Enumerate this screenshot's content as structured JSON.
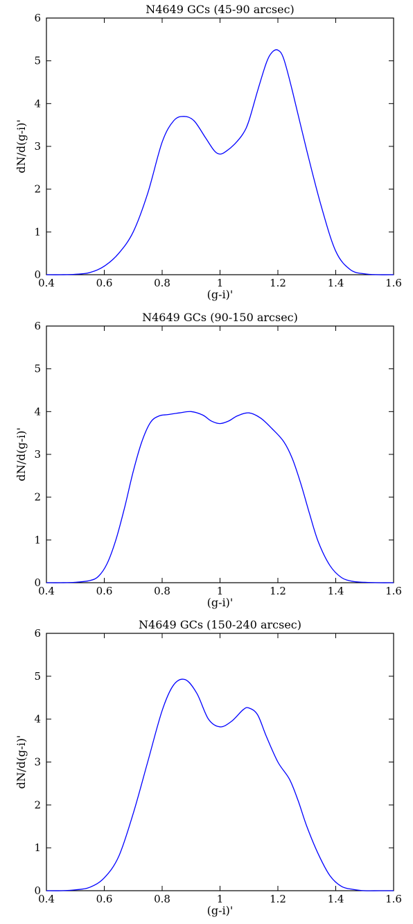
{
  "chart_data": [
    {
      "type": "line",
      "title": "N4649 GCs (45-90 arcsec)",
      "xlabel": "(g-i)'",
      "ylabel": "dN/d(g-i)'",
      "xlim": [
        0.4,
        1.6
      ],
      "ylim": [
        0,
        6
      ],
      "xticks": [
        0.4,
        0.6,
        0.8,
        1,
        1.2,
        1.4,
        1.6
      ],
      "xtick_labels": [
        "0.4",
        "0.6",
        "0.8",
        "1",
        "1.2",
        "1.4",
        "1.6"
      ],
      "yticks": [
        0,
        1,
        2,
        3,
        4,
        5,
        6
      ],
      "ytick_labels": [
        "0",
        "1",
        "2",
        "3",
        "4",
        "5",
        "6"
      ],
      "grid": false,
      "line_color": "#0000ff",
      "series": [
        {
          "x": [
            0.4,
            0.45,
            0.5,
            0.55,
            0.6,
            0.65,
            0.7,
            0.75,
            0.8,
            0.84,
            0.875,
            0.91,
            0.95,
            0.98,
            1.0,
            1.02,
            1.05,
            1.08,
            1.1,
            1.13,
            1.16,
            1.18,
            1.2,
            1.22,
            1.25,
            1.3,
            1.35,
            1.4,
            1.45,
            1.5,
            1.55,
            1.6
          ],
          "y": [
            0.0,
            0.0,
            0.01,
            0.05,
            0.2,
            0.5,
            1.0,
            1.9,
            3.1,
            3.6,
            3.7,
            3.6,
            3.2,
            2.9,
            2.82,
            2.88,
            3.05,
            3.3,
            3.6,
            4.3,
            4.95,
            5.2,
            5.25,
            5.05,
            4.3,
            2.9,
            1.6,
            0.55,
            0.12,
            0.02,
            0.0,
            0.0
          ]
        }
      ]
    },
    {
      "type": "line",
      "title": "N4649 GCs (90-150 arcsec)",
      "xlabel": "(g-i)'",
      "ylabel": "dN/d(g-i)'",
      "xlim": [
        0.4,
        1.6
      ],
      "ylim": [
        0,
        6
      ],
      "xticks": [
        0.4,
        0.6,
        0.8,
        1,
        1.2,
        1.4,
        1.6
      ],
      "xtick_labels": [
        "0.4",
        "0.6",
        "0.8",
        "1",
        "1.2",
        "1.4",
        "1.6"
      ],
      "yticks": [
        0,
        1,
        2,
        3,
        4,
        5,
        6
      ],
      "ytick_labels": [
        "0",
        "1",
        "2",
        "3",
        "4",
        "5",
        "6"
      ],
      "grid": false,
      "line_color": "#0000ff",
      "series": [
        {
          "x": [
            0.4,
            0.45,
            0.5,
            0.55,
            0.58,
            0.61,
            0.64,
            0.67,
            0.7,
            0.73,
            0.76,
            0.79,
            0.82,
            0.86,
            0.9,
            0.94,
            0.97,
            1.0,
            1.03,
            1.06,
            1.1,
            1.14,
            1.18,
            1.22,
            1.25,
            1.28,
            1.31,
            1.34,
            1.38,
            1.42,
            1.46,
            1.5,
            1.55,
            1.6
          ],
          "y": [
            0.0,
            0.0,
            0.01,
            0.05,
            0.15,
            0.45,
            1.0,
            1.75,
            2.6,
            3.3,
            3.75,
            3.9,
            3.93,
            3.97,
            4.0,
            3.92,
            3.78,
            3.72,
            3.78,
            3.9,
            3.97,
            3.85,
            3.6,
            3.3,
            2.9,
            2.3,
            1.6,
            0.95,
            0.4,
            0.12,
            0.03,
            0.01,
            0.0,
            0.0
          ]
        }
      ]
    },
    {
      "type": "line",
      "title": "N4649 GCs (150-240 arcsec)",
      "xlabel": "(g-i)'",
      "ylabel": "dN/d(g-i)'",
      "xlim": [
        0.4,
        1.6
      ],
      "ylim": [
        0,
        6
      ],
      "xticks": [
        0.4,
        0.6,
        0.8,
        1,
        1.2,
        1.4,
        1.6
      ],
      "xtick_labels": [
        "0.4",
        "0.6",
        "0.8",
        "1",
        "1.2",
        "1.4",
        "1.6"
      ],
      "yticks": [
        0,
        1,
        2,
        3,
        4,
        5,
        6
      ],
      "ytick_labels": [
        "0",
        "1",
        "2",
        "3",
        "4",
        "5",
        "6"
      ],
      "grid": false,
      "line_color": "#0000ff",
      "series": [
        {
          "x": [
            0.4,
            0.45,
            0.5,
            0.55,
            0.6,
            0.65,
            0.7,
            0.75,
            0.8,
            0.84,
            0.88,
            0.92,
            0.96,
            1.0,
            1.04,
            1.08,
            1.1,
            1.13,
            1.16,
            1.2,
            1.24,
            1.27,
            1.3,
            1.34,
            1.38,
            1.42,
            1.46,
            1.5,
            1.55,
            1.6
          ],
          "y": [
            0.0,
            0.0,
            0.02,
            0.08,
            0.3,
            0.8,
            1.8,
            3.0,
            4.2,
            4.8,
            4.92,
            4.6,
            4.0,
            3.82,
            3.95,
            4.22,
            4.26,
            4.1,
            3.6,
            3.0,
            2.6,
            2.1,
            1.5,
            0.85,
            0.35,
            0.1,
            0.03,
            0.0,
            0.0,
            0.0
          ]
        }
      ]
    }
  ]
}
